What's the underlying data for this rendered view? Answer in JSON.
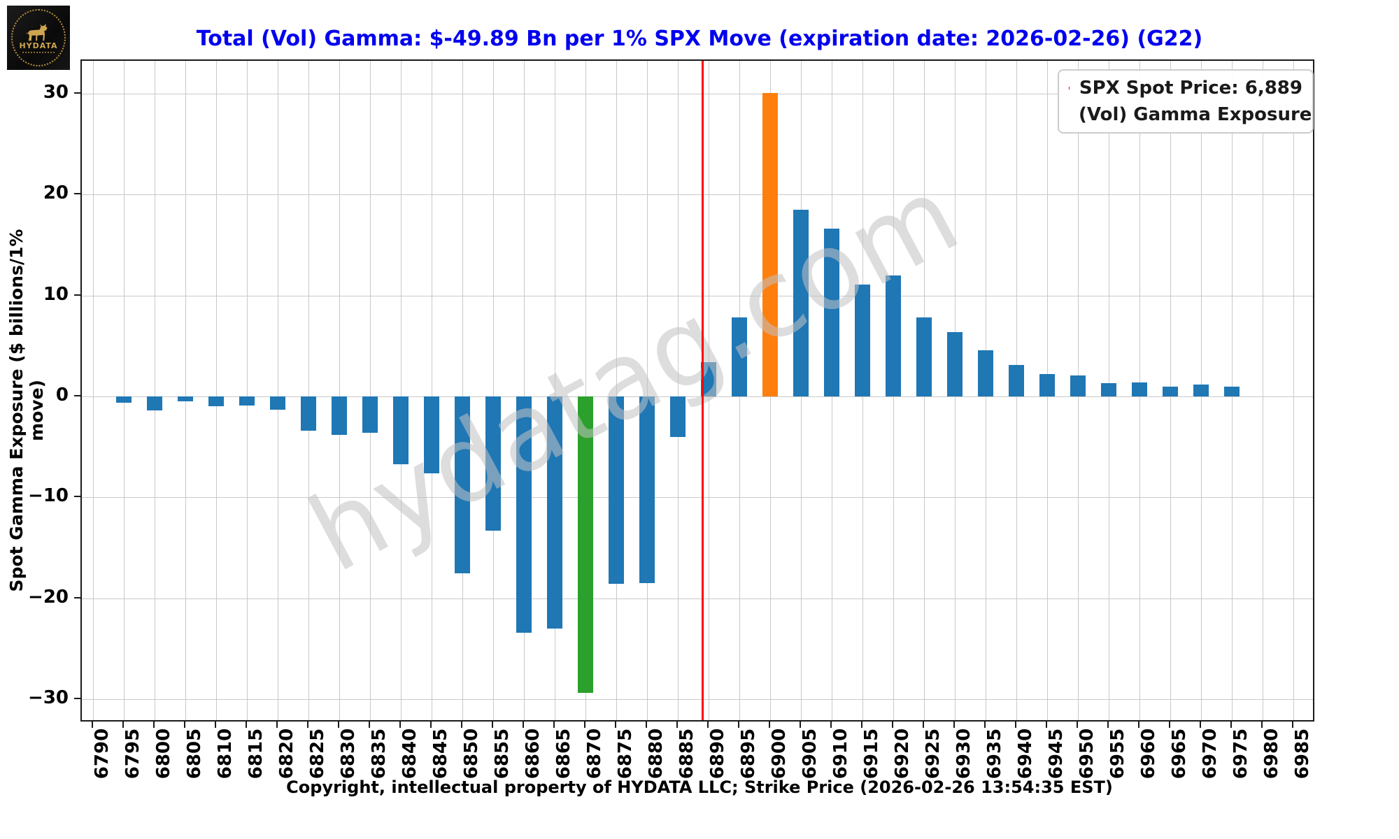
{
  "logo": {
    "brand": "HYDATA"
  },
  "title": "Total (Vol) Gamma: $-49.89 Bn per 1% SPX Move (expiration date: 2026-02-26) (G22)",
  "ylabel": "Spot Gamma Exposure ($ billions/1% move)",
  "xlabel": "Copyright, intellectual property of HYDATA LLC; Strike Price (2026-02-26 13:54:35 EST)",
  "legend": {
    "spot_label": "SPX Spot Price: 6,889",
    "gamma_label": "(Vol) Gamma Exposure"
  },
  "chart_data": {
    "type": "bar",
    "title": "Total (Vol) Gamma: $-49.89 Bn per 1% SPX Move (expiration date: 2026-02-26) (G22)",
    "xlabel": "Copyright, intellectual property of HYDATA LLC; Strike Price (2026-02-26 13:54:35 EST)",
    "ylabel": "Spot Gamma Exposure ($ billions/1% move)",
    "categories": [
      "6790",
      "6795",
      "6800",
      "6805",
      "6810",
      "6815",
      "6820",
      "6825",
      "6830",
      "6835",
      "6840",
      "6845",
      "6850",
      "6855",
      "6860",
      "6865",
      "6870",
      "6875",
      "6880",
      "6885",
      "6890",
      "6895",
      "6900",
      "6905",
      "6910",
      "6915",
      "6920",
      "6925",
      "6930",
      "6935",
      "6940",
      "6945",
      "6950",
      "6955",
      "6960",
      "6965",
      "6970",
      "6975",
      "6980",
      "6985"
    ],
    "values": [
      0,
      -0.6,
      -1.4,
      -0.5,
      -1.0,
      -0.9,
      -1.3,
      -3.4,
      -3.8,
      -3.6,
      -6.7,
      -7.6,
      -17.5,
      -13.3,
      -23.4,
      -23.0,
      -29.4,
      -18.6,
      -18.5,
      -4.0,
      3.4,
      7.8,
      30.1,
      18.5,
      16.6,
      11.1,
      12.0,
      7.8,
      6.4,
      4.6,
      3.1,
      2.2,
      2.1,
      1.3,
      1.4,
      1.0,
      1.2,
      1.0,
      0,
      0
    ],
    "series_name": "(Vol) Gamma Exposure",
    "bar_color_default": "#1f77b4",
    "bar_color_overrides": {
      "6870": "#2ca02c",
      "6900": "#ff7f0e"
    },
    "spot_price": 6889,
    "spot_price_label": "SPX Spot Price: 6,889",
    "spot_line_color": "#ff0000",
    "strike_step": 5,
    "yticks": [
      -30,
      -20,
      -10,
      0,
      10,
      20,
      30
    ],
    "ylim": [
      -32.4,
      33.3
    ],
    "grid": true,
    "legend_position": "top-right",
    "watermark": "hydatag.com",
    "title_color": "#0000ee"
  }
}
